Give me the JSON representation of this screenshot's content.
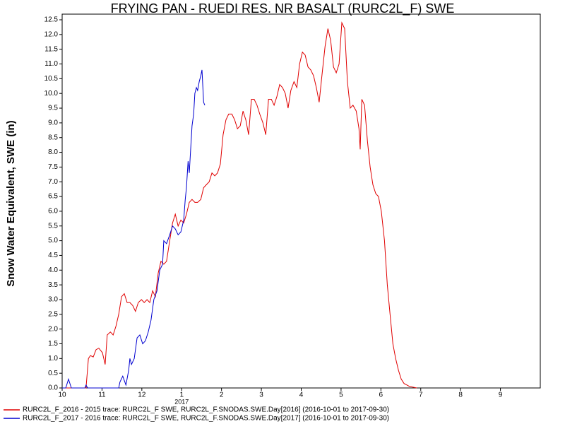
{
  "chart_data": {
    "type": "line",
    "title": "FRYING PAN - RUEDI RES. NR BASALT (RURC2L_F) SWE",
    "y_label": "Snow Water Equivalent, SWE (in)",
    "annotations": [
      {
        "text": "2017",
        "x": 3
      }
    ],
    "xlim": [
      0,
      12
    ],
    "xticks": [
      {
        "value": 0,
        "label": "10"
      },
      {
        "value": 1,
        "label": "11"
      },
      {
        "value": 2,
        "label": "12"
      },
      {
        "value": 3,
        "label": "1"
      },
      {
        "value": 4,
        "label": "2"
      },
      {
        "value": 5,
        "label": "3"
      },
      {
        "value": 6,
        "label": "4"
      },
      {
        "value": 7,
        "label": "5"
      },
      {
        "value": 8,
        "label": "6"
      },
      {
        "value": 9,
        "label": "7"
      },
      {
        "value": 10,
        "label": "8"
      },
      {
        "value": 11,
        "label": "9"
      }
    ],
    "ylim": [
      0,
      12.5
    ],
    "yticks": [
      {
        "value": 0,
        "label": "0.0"
      },
      0.5,
      {
        "value": 1,
        "label": "1.0"
      },
      1.5,
      {
        "value": 2,
        "label": "2.0"
      },
      2.5,
      {
        "value": 3,
        "label": "3.0"
      },
      3.5,
      {
        "value": 4,
        "label": "4.0"
      },
      4.5,
      {
        "value": 5,
        "label": "5.0"
      },
      5.5,
      {
        "value": 6,
        "label": "6.0"
      },
      6.5,
      {
        "value": 7,
        "label": "7.0"
      },
      7.5,
      {
        "value": 8,
        "label": "8.0"
      },
      8.5,
      {
        "value": 9,
        "label": "9.0"
      },
      9.5,
      {
        "value": 10,
        "label": "10.0"
      },
      10.5,
      {
        "value": 11,
        "label": "11.0"
      },
      11.5,
      {
        "value": 12,
        "label": "12.0"
      },
      12.5
    ],
    "grid": false,
    "series": [
      {
        "name": "RURC2L_F_2016 - 2015 trace: RURC2L_F SWE, RURC2L_F.SNODAS.SWE.Day[2016] (2016-10-01 to 2017-09-30)",
        "color": "#e00000",
        "x": [
          0,
          0.6,
          0.66,
          0.71,
          0.78,
          0.85,
          0.92,
          1.01,
          1.08,
          1.13,
          1.21,
          1.28,
          1.35,
          1.42,
          1.49,
          1.56,
          1.63,
          1.7,
          1.77,
          1.84,
          1.91,
          1.99,
          2.06,
          2.13,
          2.2,
          2.27,
          2.34,
          2.41,
          2.48,
          2.55,
          2.62,
          2.7,
          2.77,
          2.84,
          2.91,
          2.98,
          3.05,
          3.12,
          3.19,
          3.26,
          3.33,
          3.4,
          3.48,
          3.55,
          3.62,
          3.69,
          3.76,
          3.83,
          3.9,
          3.97,
          4.04,
          4.11,
          4.18,
          4.26,
          4.33,
          4.4,
          4.47,
          4.54,
          4.61,
          4.68,
          4.75,
          4.82,
          4.89,
          4.96,
          5.04,
          5.11,
          5.18,
          5.25,
          5.32,
          5.39,
          5.46,
          5.53,
          5.6,
          5.67,
          5.74,
          5.82,
          5.89,
          5.96,
          6.03,
          6.1,
          6.17,
          6.24,
          6.31,
          6.38,
          6.45,
          6.52,
          6.6,
          6.67,
          6.74,
          6.81,
          6.88,
          6.95,
          7.02,
          7.09,
          7.16,
          7.23,
          7.3,
          7.38,
          7.45,
          7.48,
          7.52,
          7.59,
          7.66,
          7.73,
          7.8,
          7.87,
          7.94,
          8.01,
          8.09,
          8.16,
          8.23,
          8.3,
          8.37,
          8.44,
          8.51,
          8.58,
          8.72,
          8.9
        ],
        "values": [
          0,
          0,
          1.0,
          1.1,
          1.05,
          1.3,
          1.35,
          1.2,
          0.8,
          1.8,
          1.9,
          1.8,
          2.1,
          2.5,
          3.1,
          3.2,
          2.9,
          2.9,
          2.8,
          2.6,
          2.9,
          3.0,
          2.9,
          3.0,
          2.9,
          3.3,
          3.1,
          3.9,
          4.3,
          4.2,
          4.3,
          5.0,
          5.6,
          5.9,
          5.5,
          5.7,
          5.6,
          5.9,
          6.3,
          6.4,
          6.3,
          6.3,
          6.4,
          6.8,
          6.9,
          7.0,
          7.3,
          7.2,
          7.3,
          7.6,
          8.6,
          9.1,
          9.3,
          9.3,
          9.1,
          8.8,
          8.9,
          9.4,
          9.1,
          8.6,
          9.8,
          9.8,
          9.6,
          9.3,
          9.0,
          8.6,
          9.8,
          9.8,
          9.6,
          9.9,
          10.3,
          10.2,
          10.0,
          9.5,
          10.1,
          10.4,
          10.2,
          11.0,
          11.4,
          11.3,
          10.9,
          10.8,
          10.6,
          10.2,
          9.7,
          10.6,
          11.6,
          12.2,
          11.8,
          10.9,
          10.7,
          11.0,
          12.4,
          12.2,
          10.4,
          9.5,
          9.6,
          9.4,
          8.8,
          8.1,
          9.8,
          9.6,
          8.4,
          7.5,
          6.9,
          6.6,
          6.5,
          6.0,
          5.0,
          3.5,
          2.5,
          1.5,
          1.0,
          0.6,
          0.3,
          0.15,
          0.05,
          0
        ]
      },
      {
        "name": "RURC2L_F_2017 - 2016 trace: RURC2L_F SWE, RURC2L_F.SNODAS.SWE.Day[2017] (2016-10-01 to 2017-09-30)",
        "color": "#0000d0",
        "x": [
          0,
          0.09,
          0.16,
          0.23,
          0.57,
          0.6,
          0.64,
          1.42,
          1.45,
          1.52,
          1.6,
          1.67,
          1.7,
          1.74,
          1.81,
          1.88,
          1.95,
          2.02,
          2.09,
          2.16,
          2.23,
          2.3,
          2.38,
          2.45,
          2.52,
          2.55,
          2.62,
          2.7,
          2.77,
          2.84,
          2.91,
          2.98,
          3.05,
          3.09,
          3.12,
          3.16,
          3.19,
          3.23,
          3.26,
          3.3,
          3.33,
          3.37,
          3.4,
          3.44,
          3.48,
          3.51,
          3.55,
          3.58
        ],
        "values": [
          0,
          0,
          0.3,
          0,
          0,
          0.1,
          0,
          0,
          0.2,
          0.4,
          0.1,
          0.6,
          1.0,
          0.8,
          1.0,
          1.7,
          1.8,
          1.5,
          1.6,
          1.9,
          2.3,
          3.0,
          3.3,
          4.0,
          4.2,
          5.0,
          4.9,
          5.2,
          5.5,
          5.4,
          5.2,
          5.3,
          5.7,
          6.4,
          6.8,
          7.7,
          7.3,
          8.2,
          8.9,
          9.3,
          10.0,
          10.2,
          10.1,
          10.4,
          10.6,
          10.8,
          9.7,
          9.6
        ]
      }
    ]
  }
}
